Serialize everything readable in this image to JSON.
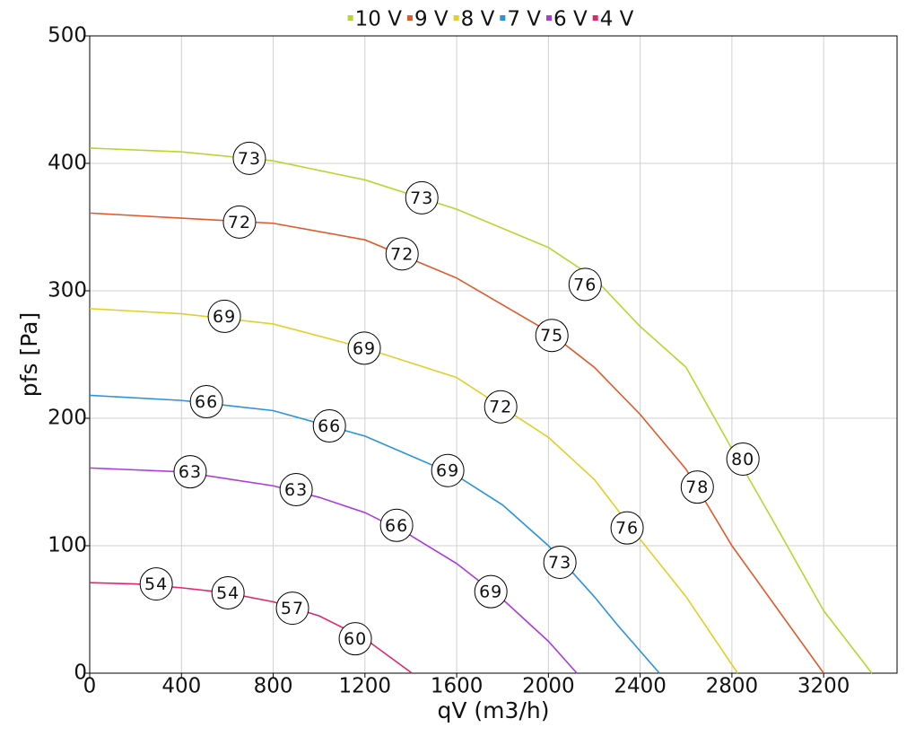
{
  "chart_data": {
    "type": "line",
    "x_label": "qV (m3/h)",
    "y_label": "pfs [Pa]",
    "xlim": [
      0,
      3520
    ],
    "ylim": [
      0,
      500
    ],
    "xticks": [
      0,
      400,
      800,
      1200,
      1600,
      2000,
      2400,
      2800,
      3200
    ],
    "yticks": [
      0,
      100,
      200,
      300,
      400,
      500
    ],
    "grid": true,
    "legend": "top",
    "series": [
      {
        "name": "10 V",
        "color": "#b9d532",
        "x": [
          0,
          400,
          800,
          1200,
          1600,
          2000,
          2200,
          2400,
          2600,
          2800,
          3000,
          3200,
          3410
        ],
        "values": [
          412,
          409,
          402,
          387,
          364,
          334,
          310,
          272,
          240,
          176,
          113,
          49,
          0
        ],
        "labels": [
          {
            "x": 696,
            "y": 404,
            "value": 73
          },
          {
            "x": 1448,
            "y": 373,
            "value": 73
          },
          {
            "x": 2160,
            "y": 305,
            "value": 76
          },
          {
            "x": 2848,
            "y": 168,
            "value": 80
          }
        ]
      },
      {
        "name": "9 V",
        "color": "#e05a2b",
        "x": [
          0,
          400,
          800,
          1200,
          1600,
          2000,
          2200,
          2400,
          2600,
          2800,
          3000,
          3200
        ],
        "values": [
          361,
          357,
          353,
          340,
          310,
          268,
          240,
          203,
          160,
          100,
          50,
          0
        ],
        "labels": [
          {
            "x": 653,
            "y": 354,
            "value": 72
          },
          {
            "x": 1362,
            "y": 329,
            "value": 72
          },
          {
            "x": 2015,
            "y": 265,
            "value": 75
          },
          {
            "x": 2649,
            "y": 146,
            "value": 78
          }
        ]
      },
      {
        "name": "8 V",
        "color": "#e2cf2a",
        "x": [
          0,
          400,
          800,
          1200,
          1600,
          2000,
          2200,
          2400,
          2600,
          2825
        ],
        "values": [
          286,
          282,
          274,
          255,
          232,
          185,
          152,
          105,
          60,
          0
        ],
        "labels": [
          {
            "x": 587,
            "y": 280,
            "value": 69
          },
          {
            "x": 1197,
            "y": 255,
            "value": 69
          },
          {
            "x": 1792,
            "y": 209,
            "value": 72
          },
          {
            "x": 2343,
            "y": 114,
            "value": 76
          }
        ]
      },
      {
        "name": "7 V",
        "color": "#2a93df",
        "x": [
          0,
          400,
          800,
          1200,
          1600,
          1800,
          2000,
          2200,
          2300,
          2484
        ],
        "values": [
          218,
          214,
          206,
          186,
          155,
          132,
          100,
          60,
          38,
          0
        ],
        "labels": [
          {
            "x": 509,
            "y": 213,
            "value": 66
          },
          {
            "x": 1045,
            "y": 194,
            "value": 66
          },
          {
            "x": 1561,
            "y": 159,
            "value": 69
          },
          {
            "x": 2050,
            "y": 87,
            "value": 73
          }
        ]
      },
      {
        "name": "6 V",
        "color": "#a93ce0",
        "x": [
          0,
          400,
          800,
          1000,
          1200,
          1400,
          1600,
          1800,
          2000,
          2124
        ],
        "values": [
          161,
          158,
          147,
          138,
          126,
          108,
          86,
          58,
          25,
          0
        ],
        "labels": [
          {
            "x": 438,
            "y": 158,
            "value": 63
          },
          {
            "x": 900,
            "y": 144,
            "value": 63
          },
          {
            "x": 1338,
            "y": 116,
            "value": 66
          },
          {
            "x": 1749,
            "y": 64,
            "value": 69
          }
        ]
      },
      {
        "name": "4 V",
        "color": "#e1266c",
        "x": [
          0,
          200,
          400,
          600,
          800,
          1000,
          1200,
          1405
        ],
        "values": [
          71,
          70,
          67,
          63,
          56,
          45,
          27,
          0
        ],
        "labels": [
          {
            "x": 290,
            "y": 70,
            "value": 54
          },
          {
            "x": 603,
            "y": 63,
            "value": 54
          },
          {
            "x": 884,
            "y": 51,
            "value": 57
          },
          {
            "x": 1158,
            "y": 27,
            "value": 60
          }
        ]
      }
    ]
  }
}
